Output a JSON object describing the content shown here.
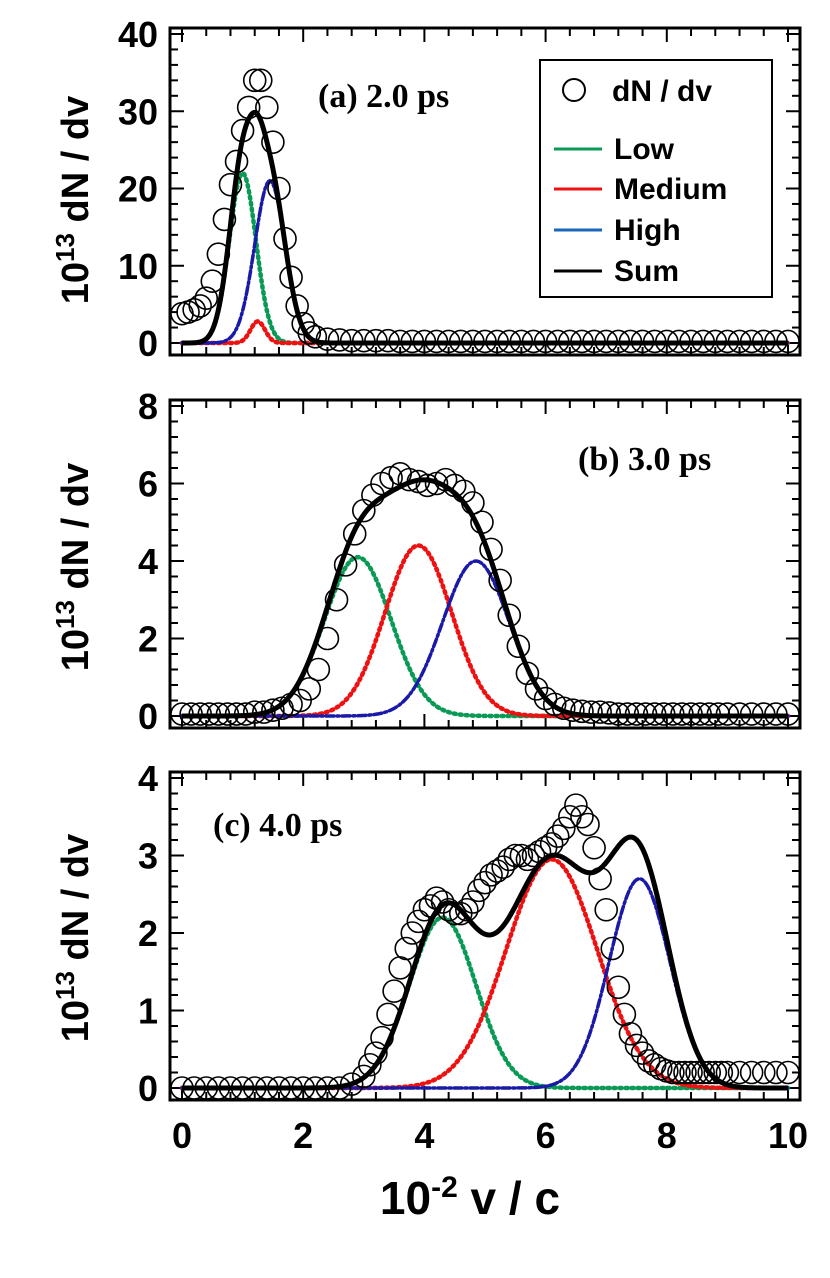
{
  "chart_data": [
    {
      "type": "line",
      "title": "(a) 2.0 ps",
      "xlabel_base": "10",
      "xlabel_exp": "-2",
      "xlabel_rest": " v / c",
      "ylabel_base": "10",
      "ylabel_exp": "13",
      "ylabel_rest": " dN / dv",
      "xlim": [
        0,
        10
      ],
      "ylim": [
        0,
        40
      ],
      "yticks": [
        0,
        10,
        20,
        30,
        40
      ],
      "xticks": [
        0,
        2,
        4,
        6,
        8,
        10
      ],
      "legend": {
        "position": "top-right",
        "entries": [
          "dN / dv",
          "Low",
          "Medium",
          "High",
          "Sum"
        ]
      },
      "components": [
        {
          "name": "Low",
          "color": "#0a9a55",
          "style": "dotted",
          "amplitude": 22,
          "center": 1.0,
          "sigma": 0.22
        },
        {
          "name": "Medium",
          "color": "#ee1111",
          "style": "dotted",
          "amplitude": 2.8,
          "center": 1.25,
          "sigma": 0.12
        },
        {
          "name": "High",
          "color": "#1a1aa8",
          "style": "dashdot",
          "amplitude": 21,
          "center": 1.45,
          "sigma": 0.25
        }
      ],
      "data_points": {
        "name": "dN / dv",
        "x": [
          0.0,
          0.1,
          0.2,
          0.3,
          0.4,
          0.5,
          0.6,
          0.7,
          0.8,
          0.9,
          1.0,
          1.1,
          1.2,
          1.3,
          1.4,
          1.5,
          1.6,
          1.7,
          1.8,
          1.9,
          2.0,
          2.1,
          2.2,
          2.4,
          2.6,
          2.8,
          3.0,
          3.2,
          3.4,
          3.6,
          3.8,
          4.0,
          4.2,
          4.4,
          4.6,
          4.8,
          5.0,
          5.2,
          5.4,
          5.6,
          5.8,
          6.0,
          6.2,
          6.4,
          6.6,
          6.8,
          7.0,
          7.2,
          7.4,
          7.6,
          7.8,
          8.0,
          8.2,
          8.4,
          8.6,
          8.8,
          9.0,
          9.2,
          9.4,
          9.6,
          9.8,
          10.0
        ],
        "y": [
          3.8,
          4.0,
          4.3,
          4.8,
          5.8,
          8.0,
          11.5,
          16.0,
          20.5,
          23.5,
          27.5,
          30.5,
          34.0,
          34.0,
          30.5,
          26.0,
          20.0,
          13.5,
          8.5,
          4.8,
          2.5,
          1.3,
          0.8,
          0.5,
          0.4,
          0.3,
          0.3,
          0.3,
          0.3,
          0.2,
          0.2,
          0.2,
          0.2,
          0.2,
          0.2,
          0.2,
          0.2,
          0.2,
          0.2,
          0.2,
          0.2,
          0.2,
          0.2,
          0.2,
          0.2,
          0.2,
          0.2,
          0.2,
          0.2,
          0.2,
          0.2,
          0.2,
          0.2,
          0.2,
          0.2,
          0.2,
          0.2,
          0.2,
          0.2,
          0.2,
          0.2,
          0.2
        ]
      }
    },
    {
      "type": "line",
      "title": "(b) 3.0 ps",
      "ylabel_base": "10",
      "ylabel_exp": "13",
      "ylabel_rest": " dN / dv",
      "xlim": [
        0,
        10
      ],
      "ylim": [
        0,
        8
      ],
      "yticks": [
        0,
        2,
        4,
        6,
        8
      ],
      "xticks": [
        0,
        2,
        4,
        6,
        8,
        10
      ],
      "components": [
        {
          "name": "Low",
          "color": "#0a9a55",
          "style": "dotted",
          "amplitude": 4.1,
          "center": 2.9,
          "sigma": 0.55
        },
        {
          "name": "Medium",
          "color": "#ee1111",
          "style": "dotted",
          "amplitude": 4.4,
          "center": 3.9,
          "sigma": 0.55
        },
        {
          "name": "High",
          "color": "#1a1aa8",
          "style": "dashdot",
          "amplitude": 4.0,
          "center": 4.85,
          "sigma": 0.55
        }
      ],
      "data_points": {
        "name": "dN / dv",
        "x": [
          0.0,
          0.15,
          0.3,
          0.45,
          0.6,
          0.75,
          0.9,
          1.05,
          1.2,
          1.35,
          1.5,
          1.65,
          1.8,
          1.95,
          2.1,
          2.25,
          2.4,
          2.55,
          2.7,
          2.85,
          3.0,
          3.15,
          3.3,
          3.45,
          3.6,
          3.75,
          3.9,
          4.05,
          4.2,
          4.35,
          4.5,
          4.65,
          4.8,
          4.95,
          5.1,
          5.25,
          5.4,
          5.55,
          5.7,
          5.85,
          6.0,
          6.15,
          6.3,
          6.45,
          6.6,
          6.75,
          6.9,
          7.05,
          7.2,
          7.35,
          7.5,
          7.65,
          7.8,
          7.95,
          8.1,
          8.25,
          8.4,
          8.55,
          8.7,
          8.85,
          9.0,
          9.2,
          9.4,
          9.6,
          9.8,
          10.0
        ],
        "y": [
          0.05,
          0.05,
          0.05,
          0.05,
          0.05,
          0.05,
          0.05,
          0.05,
          0.1,
          0.1,
          0.15,
          0.2,
          0.3,
          0.4,
          0.7,
          1.2,
          2.0,
          3.0,
          3.9,
          4.7,
          5.3,
          5.7,
          6.0,
          6.15,
          6.25,
          6.1,
          6.05,
          5.95,
          6.0,
          6.1,
          5.95,
          5.8,
          5.5,
          5.0,
          4.3,
          3.5,
          2.6,
          1.8,
          1.1,
          0.7,
          0.45,
          0.3,
          0.2,
          0.15,
          0.12,
          0.1,
          0.1,
          0.08,
          0.05,
          0.05,
          0.05,
          0.05,
          0.05,
          0.05,
          0.05,
          0.05,
          0.05,
          0.05,
          0.05,
          0.05,
          0.05,
          0.05,
          0.05,
          0.05,
          0.05,
          0.05
        ]
      }
    },
    {
      "type": "line",
      "title": "(c) 4.0 ps",
      "ylabel_base": "10",
      "ylabel_exp": "13",
      "ylabel_rest": " dN / dv",
      "xlim": [
        0,
        10
      ],
      "ylim": [
        0,
        4
      ],
      "yticks": [
        0,
        1,
        2,
        3,
        4
      ],
      "xticks": [
        0,
        2,
        4,
        6,
        8,
        10
      ],
      "components": [
        {
          "name": "Low",
          "color": "#0a9a55",
          "style": "dotted",
          "amplitude": 2.2,
          "center": 4.3,
          "sigma": 0.55
        },
        {
          "name": "Medium",
          "color": "#ee1111",
          "style": "dotted",
          "amplitude": 2.95,
          "center": 6.1,
          "sigma": 0.75
        },
        {
          "name": "High",
          "color": "#1a1aa8",
          "style": "dashdot",
          "amplitude": 2.7,
          "center": 7.55,
          "sigma": 0.5
        }
      ],
      "data_points": {
        "name": "dN / dv",
        "x": [
          0.0,
          0.2,
          0.4,
          0.6,
          0.8,
          1.0,
          1.2,
          1.4,
          1.6,
          1.8,
          2.0,
          2.2,
          2.4,
          2.6,
          2.8,
          3.0,
          3.1,
          3.2,
          3.3,
          3.4,
          3.5,
          3.6,
          3.7,
          3.8,
          3.9,
          4.0,
          4.1,
          4.2,
          4.3,
          4.4,
          4.5,
          4.6,
          4.7,
          4.8,
          4.9,
          5.0,
          5.1,
          5.2,
          5.3,
          5.4,
          5.5,
          5.6,
          5.7,
          5.8,
          5.9,
          6.0,
          6.1,
          6.2,
          6.3,
          6.4,
          6.5,
          6.6,
          6.7,
          6.8,
          6.9,
          7.0,
          7.1,
          7.2,
          7.3,
          7.4,
          7.5,
          7.6,
          7.7,
          7.8,
          7.9,
          8.0,
          8.1,
          8.2,
          8.3,
          8.4,
          8.5,
          8.6,
          8.7,
          8.8,
          8.9,
          9.0,
          9.2,
          9.4,
          9.6,
          9.8,
          10.0
        ],
        "y": [
          0.0,
          0.0,
          0.0,
          0.0,
          0.0,
          0.0,
          0.0,
          0.0,
          0.0,
          0.0,
          0.0,
          0.0,
          0.0,
          0.0,
          0.05,
          0.15,
          0.3,
          0.45,
          0.65,
          0.95,
          1.25,
          1.55,
          1.8,
          2.0,
          2.15,
          2.3,
          2.35,
          2.45,
          2.4,
          2.3,
          2.25,
          2.25,
          2.3,
          2.4,
          2.55,
          2.65,
          2.75,
          2.8,
          2.85,
          2.95,
          3.0,
          3.0,
          2.95,
          3.0,
          3.05,
          3.1,
          3.15,
          3.25,
          3.35,
          3.5,
          3.65,
          3.5,
          3.4,
          3.1,
          2.7,
          2.3,
          1.8,
          1.3,
          0.95,
          0.7,
          0.55,
          0.45,
          0.35,
          0.3,
          0.25,
          0.22,
          0.2,
          0.2,
          0.2,
          0.2,
          0.2,
          0.2,
          0.2,
          0.2,
          0.2,
          0.2,
          0.2,
          0.2,
          0.2,
          0.2,
          0.2
        ]
      }
    }
  ]
}
